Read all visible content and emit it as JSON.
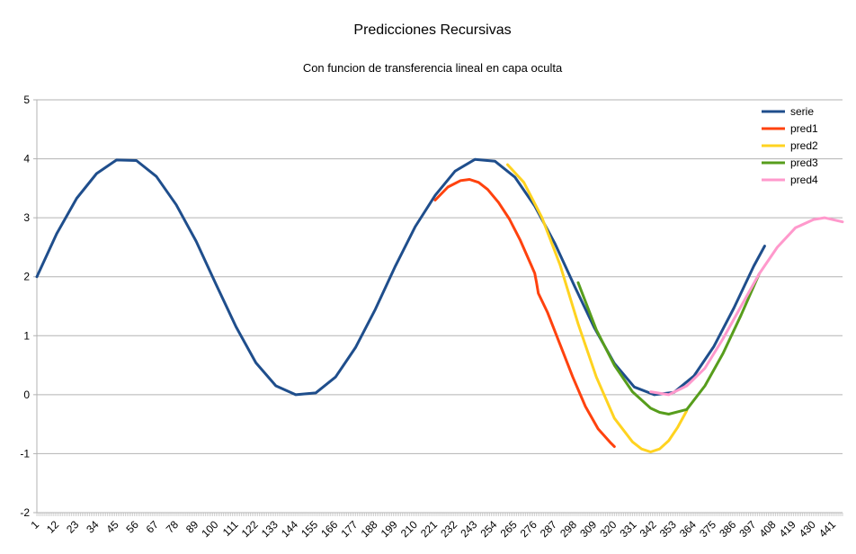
{
  "chart_data": {
    "type": "line",
    "title": "Predicciones Recursivas",
    "subtitle": "Con funcion de transferencia lineal en capa oculta",
    "xlabel": "",
    "ylabel": "",
    "ylim": [
      -2,
      5
    ],
    "yticks": [
      "-2",
      "-1",
      "0",
      "1",
      "2",
      "3",
      "4",
      "5"
    ],
    "xlim": [
      1,
      446
    ],
    "x_tick_step": 11,
    "grid": true,
    "legend_position": "top-right",
    "series": [
      {
        "name": "serie",
        "color": "#1f4e8c",
        "x": [
          1,
          12,
          23,
          34,
          45,
          56,
          67,
          78,
          89,
          100,
          111,
          122,
          133,
          144,
          155,
          166,
          177,
          188,
          199,
          210,
          221,
          232,
          243,
          254,
          265,
          276,
          287,
          298,
          309,
          320,
          331,
          342,
          353,
          364,
          375,
          386,
          397,
          403
        ],
        "y": [
          2.0,
          2.73,
          3.33,
          3.75,
          3.98,
          3.97,
          3.7,
          3.22,
          2.6,
          1.87,
          1.15,
          0.54,
          0.15,
          0.0,
          0.03,
          0.3,
          0.8,
          1.45,
          2.18,
          2.85,
          3.38,
          3.79,
          3.99,
          3.96,
          3.69,
          3.2,
          2.57,
          1.84,
          1.13,
          0.53,
          0.13,
          0.0,
          0.04,
          0.32,
          0.82,
          1.47,
          2.18,
          2.52
        ]
      },
      {
        "name": "pred1",
        "color": "#ff420e",
        "x": [
          221,
          228,
          235,
          240,
          245,
          250,
          256,
          262,
          268,
          274,
          276,
          277,
          278,
          283,
          290,
          297,
          304,
          311,
          318,
          320
        ],
        "y": [
          3.3,
          3.52,
          3.63,
          3.65,
          3.6,
          3.48,
          3.26,
          2.98,
          2.62,
          2.2,
          2.06,
          1.9,
          1.72,
          1.4,
          0.85,
          0.3,
          -0.2,
          -0.58,
          -0.82,
          -0.88
        ]
      },
      {
        "name": "pred2",
        "color": "#ffd320",
        "x": [
          261,
          270,
          280,
          290,
          300,
          310,
          320,
          330,
          335,
          340,
          345,
          350,
          355,
          360
        ],
        "y": [
          3.9,
          3.6,
          3.0,
          2.2,
          1.2,
          0.3,
          -0.4,
          -0.8,
          -0.92,
          -0.97,
          -0.92,
          -0.78,
          -0.55,
          -0.27
        ]
      },
      {
        "name": "pred3",
        "color": "#579d1c",
        "x": [
          300,
          310,
          320,
          330,
          340,
          345,
          350,
          360,
          370,
          380,
          390,
          400
        ],
        "y": [
          1.9,
          1.1,
          0.5,
          0.05,
          -0.23,
          -0.3,
          -0.33,
          -0.25,
          0.15,
          0.7,
          1.35,
          2.05
        ]
      },
      {
        "name": "pred4",
        "color": "#ff99cc",
        "x": [
          340,
          350,
          360,
          370,
          380,
          390,
          400,
          410,
          420,
          430,
          436,
          446
        ],
        "y": [
          0.05,
          0.0,
          0.15,
          0.45,
          0.95,
          1.5,
          2.05,
          2.5,
          2.83,
          2.97,
          3.0,
          2.93
        ]
      }
    ]
  }
}
